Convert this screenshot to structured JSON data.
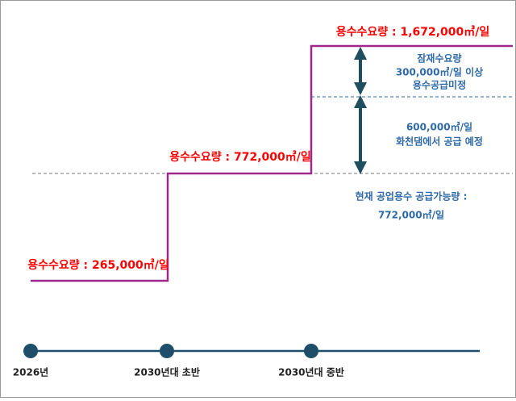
{
  "demand_labels": [
    "용수수요량 : 265,000㎥/일",
    "용수수요량 : 772,000㎥/일",
    "용수수요량 : 1,672,000㎥/일"
  ],
  "potential_demand": [
    "잠재수요량",
    "300,000㎥/일 이상",
    "용수공급미정"
  ],
  "hwacheon_dam": [
    "600,000㎥/일",
    "화천댐에서 공급 예정"
  ],
  "current_supply": [
    "현재 공업용수 공급가능량 :",
    "772,000㎥/일"
  ],
  "timeline": [
    "2026년",
    "2030년대 초반",
    "2030년대 중반"
  ]
}
